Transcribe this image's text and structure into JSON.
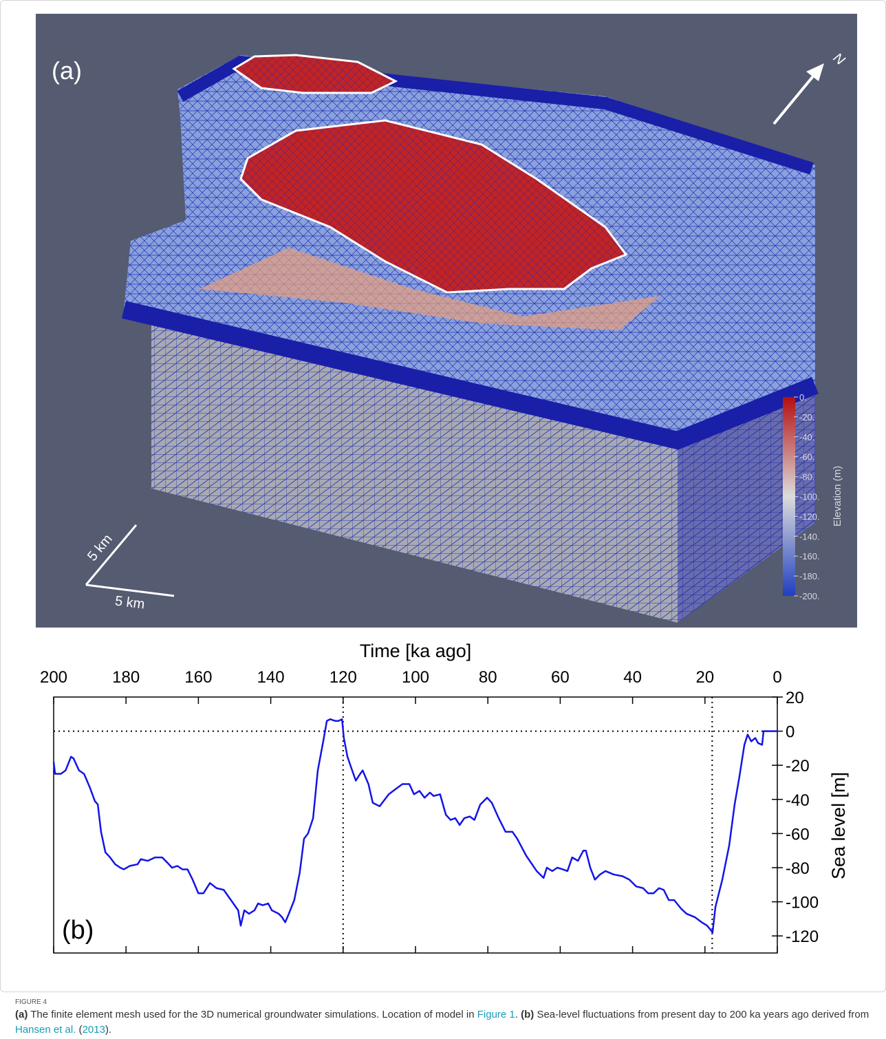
{
  "panel_a": {
    "label": "(a)",
    "north": "N",
    "scale_labels": [
      "5 km",
      "5 km"
    ],
    "colorbar": {
      "label": "Elevation (m)",
      "lim": [
        -200,
        0
      ],
      "colors": [
        "#1f3fbf",
        "#dcdcdc",
        "#b40f0f"
      ],
      "ticks": [
        {
          "value": 0,
          "label": "0."
        },
        {
          "value": -20,
          "label": "-20."
        },
        {
          "value": -40,
          "label": "-40."
        },
        {
          "value": -60,
          "label": "-60."
        },
        {
          "value": -80,
          "label": "-80."
        },
        {
          "value": -100,
          "label": "-100."
        },
        {
          "value": -120,
          "label": "-120."
        },
        {
          "value": -140,
          "label": "-140."
        },
        {
          "value": -160,
          "label": "-160."
        },
        {
          "value": -180,
          "label": "-180."
        },
        {
          "value": -200,
          "label": "-200."
        }
      ]
    }
  },
  "chart_data": {
    "type": "line",
    "panel_label": "(b)",
    "xlabel": "Time [ka ago]",
    "ylabel": "Sea level [m]",
    "xlim": [
      200,
      0
    ],
    "xticks": [
      200,
      180,
      160,
      140,
      120,
      100,
      80,
      60,
      40,
      20,
      0
    ],
    "ylim": [
      -130,
      20
    ],
    "yticks": [
      20,
      0,
      -20,
      -40,
      -60,
      -80,
      -100,
      -120
    ],
    "ref_x": [
      120,
      18
    ],
    "ref_y": [
      0
    ],
    "x": [
      200,
      199.6,
      198,
      196.7,
      195.2,
      194.5,
      193,
      191.6,
      190,
      188.6,
      187.8,
      186.9,
      185.7,
      184.4,
      183,
      181.6,
      180.6,
      179,
      176.8,
      175.9,
      174,
      172,
      170,
      168.6,
      167.3,
      165.8,
      164.4,
      163,
      161.6,
      160,
      158.6,
      156.8,
      155,
      153,
      151,
      149,
      148.3,
      147.3,
      146,
      144.5,
      143.5,
      142.2,
      140.7,
      139.7,
      137.8,
      136.9,
      136,
      135,
      133.5,
      132,
      130.8,
      129.7,
      128.3,
      127,
      125.5,
      124.5,
      123.6,
      122.2,
      121.3,
      120.3,
      119.8,
      118.8,
      117.5,
      116.5,
      115.6,
      114.6,
      113,
      111.8,
      109.9,
      107.4,
      104.9,
      103.6,
      101.7,
      100.4,
      98.9,
      97.5,
      96,
      95,
      93.2,
      91.6,
      90.3,
      89,
      87.8,
      86.5,
      85,
      83.7,
      82.1,
      80.2,
      78.9,
      77,
      75.1,
      73.2,
      71.9,
      69.4,
      66.5,
      64.6,
      63.7,
      62.2,
      60.8,
      59.3,
      58,
      56.7,
      55.1,
      53.6,
      52.9,
      51.7,
      50.4,
      49,
      47.5,
      45.2,
      42.8,
      40.9,
      39,
      37.1,
      35.7,
      34.2,
      32.7,
      31.4,
      30,
      28.5,
      26.6,
      25.1,
      22.8,
      20.9,
      19.4,
      18.6,
      17.9,
      17.1,
      15.2,
      13.3,
      11.8,
      10.5,
      9.1,
      8.2,
      7.2,
      6.1,
      5.3,
      4.2,
      3.8,
      2.3,
      0
    ],
    "series": [
      {
        "color": "#1414e6",
        "values": [
          -18,
          -25,
          -25,
          -23,
          -15,
          -16,
          -23,
          -25,
          -33,
          -41,
          -43,
          -59,
          -71,
          -74,
          -78,
          -80,
          -81,
          -79,
          -78,
          -75,
          -76,
          -74,
          -74,
          -77,
          -80,
          -79,
          -81,
          -81,
          -87,
          -95,
          -95,
          -89,
          -92,
          -93,
          -99,
          -105,
          -114,
          -105,
          -107,
          -105,
          -101,
          -102,
          -101,
          -105,
          -107,
          -109,
          -112,
          -107,
          -99,
          -83,
          -63,
          -60,
          -51,
          -23,
          -6,
          6,
          7,
          6,
          6,
          7,
          -4,
          -15,
          -23,
          -29,
          -26,
          -23,
          -31,
          -42,
          -44,
          -37,
          -33,
          -31,
          -31,
          -37,
          -35,
          -39,
          -36,
          -38,
          -37,
          -49,
          -52,
          -51,
          -55,
          -51,
          -50,
          -52,
          -43,
          -39,
          -42,
          -51,
          -59,
          -59,
          -63,
          -73,
          -82,
          -86,
          -80,
          -82,
          -80,
          -81,
          -82,
          -74,
          -76,
          -70,
          -70,
          -80,
          -87,
          -84,
          -82,
          -84,
          -85,
          -87,
          -91,
          -92,
          -95,
          -95,
          -92,
          -93,
          -99,
          -99,
          -104,
          -107,
          -109,
          -112,
          -114,
          -116,
          -118,
          -103,
          -87,
          -67,
          -43,
          -27,
          -8,
          -2,
          -6,
          -4,
          -7,
          -8,
          0,
          0,
          0
        ]
      }
    ]
  },
  "caption": {
    "label": "FIGURE 4",
    "parts": [
      {
        "text": "(a)",
        "style": "bold"
      },
      {
        "text": " The finite element mesh used for the 3D numerical groundwater simulations. Location of model in "
      },
      {
        "text": "Figure 1",
        "style": "link"
      },
      {
        "text": ". "
      },
      {
        "text": "(b)",
        "style": "bold"
      },
      {
        "text": " Sea-level fluctuations from present day to 200 ka years ago derived from "
      },
      {
        "text": "Hansen et al.",
        "style": "link"
      },
      {
        "text": " ("
      },
      {
        "text": "2013",
        "style": "link"
      },
      {
        "text": ")."
      }
    ]
  }
}
